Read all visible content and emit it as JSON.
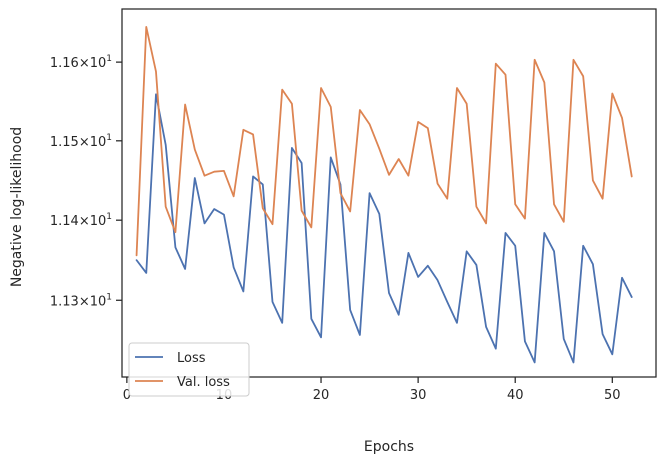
{
  "chart_data": {
    "type": "line",
    "title": "",
    "xlabel": "Epochs",
    "ylabel": "Negative log-likelihood",
    "xlim": [
      -0.5,
      54.5
    ],
    "ylim": [
      11.205,
      11.668
    ],
    "yscale": "log",
    "grid": false,
    "legend_position": "lower-left",
    "x_ticks": [
      {
        "value": 0,
        "label": "0"
      },
      {
        "value": 10,
        "label": "10"
      },
      {
        "value": 20,
        "label": "20"
      },
      {
        "value": 30,
        "label": "30"
      },
      {
        "value": 40,
        "label": "40"
      },
      {
        "value": 50,
        "label": "50"
      }
    ],
    "y_ticks": [
      {
        "value": 11.3,
        "base": "1.13",
        "exp": "1"
      },
      {
        "value": 11.4,
        "base": "1.14",
        "exp": "1"
      },
      {
        "value": 11.5,
        "base": "1.15",
        "exp": "1"
      },
      {
        "value": 11.6,
        "base": "1.16",
        "exp": "1"
      }
    ],
    "x": [
      1,
      2,
      3,
      4,
      5,
      6,
      7,
      8,
      9,
      10,
      11,
      12,
      13,
      14,
      15,
      16,
      17,
      18,
      19,
      20,
      21,
      22,
      23,
      24,
      25,
      26,
      27,
      28,
      29,
      30,
      31,
      32,
      33,
      34,
      35,
      36,
      37,
      38,
      39,
      40,
      41,
      42,
      43,
      44,
      45,
      46,
      47,
      48,
      49,
      50,
      51,
      52
    ],
    "series": [
      {
        "name": "Loss",
        "color": "#4c72b0",
        "values": [
          11.35,
          11.334,
          11.559,
          11.495,
          11.366,
          11.339,
          11.453,
          11.396,
          11.414,
          11.407,
          11.341,
          11.311,
          11.455,
          11.445,
          11.298,
          11.272,
          11.491,
          11.472,
          11.277,
          11.254,
          11.479,
          11.445,
          11.288,
          11.257,
          11.434,
          11.408,
          11.309,
          11.282,
          11.359,
          11.329,
          11.343,
          11.325,
          11.298,
          11.272,
          11.361,
          11.344,
          11.267,
          11.24,
          11.384,
          11.368,
          11.249,
          11.223,
          11.384,
          11.361,
          11.252,
          11.223,
          11.368,
          11.345,
          11.258,
          11.233,
          11.328,
          11.304
        ]
      },
      {
        "name": "Val. loss",
        "color": "#dd8452",
        "values": [
          11.356,
          11.645,
          11.588,
          11.417,
          11.385,
          11.546,
          11.489,
          11.456,
          11.461,
          11.462,
          11.43,
          11.514,
          11.508,
          11.415,
          11.395,
          11.565,
          11.547,
          11.412,
          11.391,
          11.567,
          11.543,
          11.434,
          11.411,
          11.539,
          11.521,
          11.49,
          11.457,
          11.477,
          11.456,
          11.524,
          11.516,
          11.446,
          11.427,
          11.567,
          11.547,
          11.417,
          11.396,
          11.598,
          11.584,
          11.42,
          11.402,
          11.603,
          11.574,
          11.42,
          11.398,
          11.603,
          11.582,
          11.45,
          11.427,
          11.56,
          11.529,
          11.455
        ]
      }
    ]
  }
}
